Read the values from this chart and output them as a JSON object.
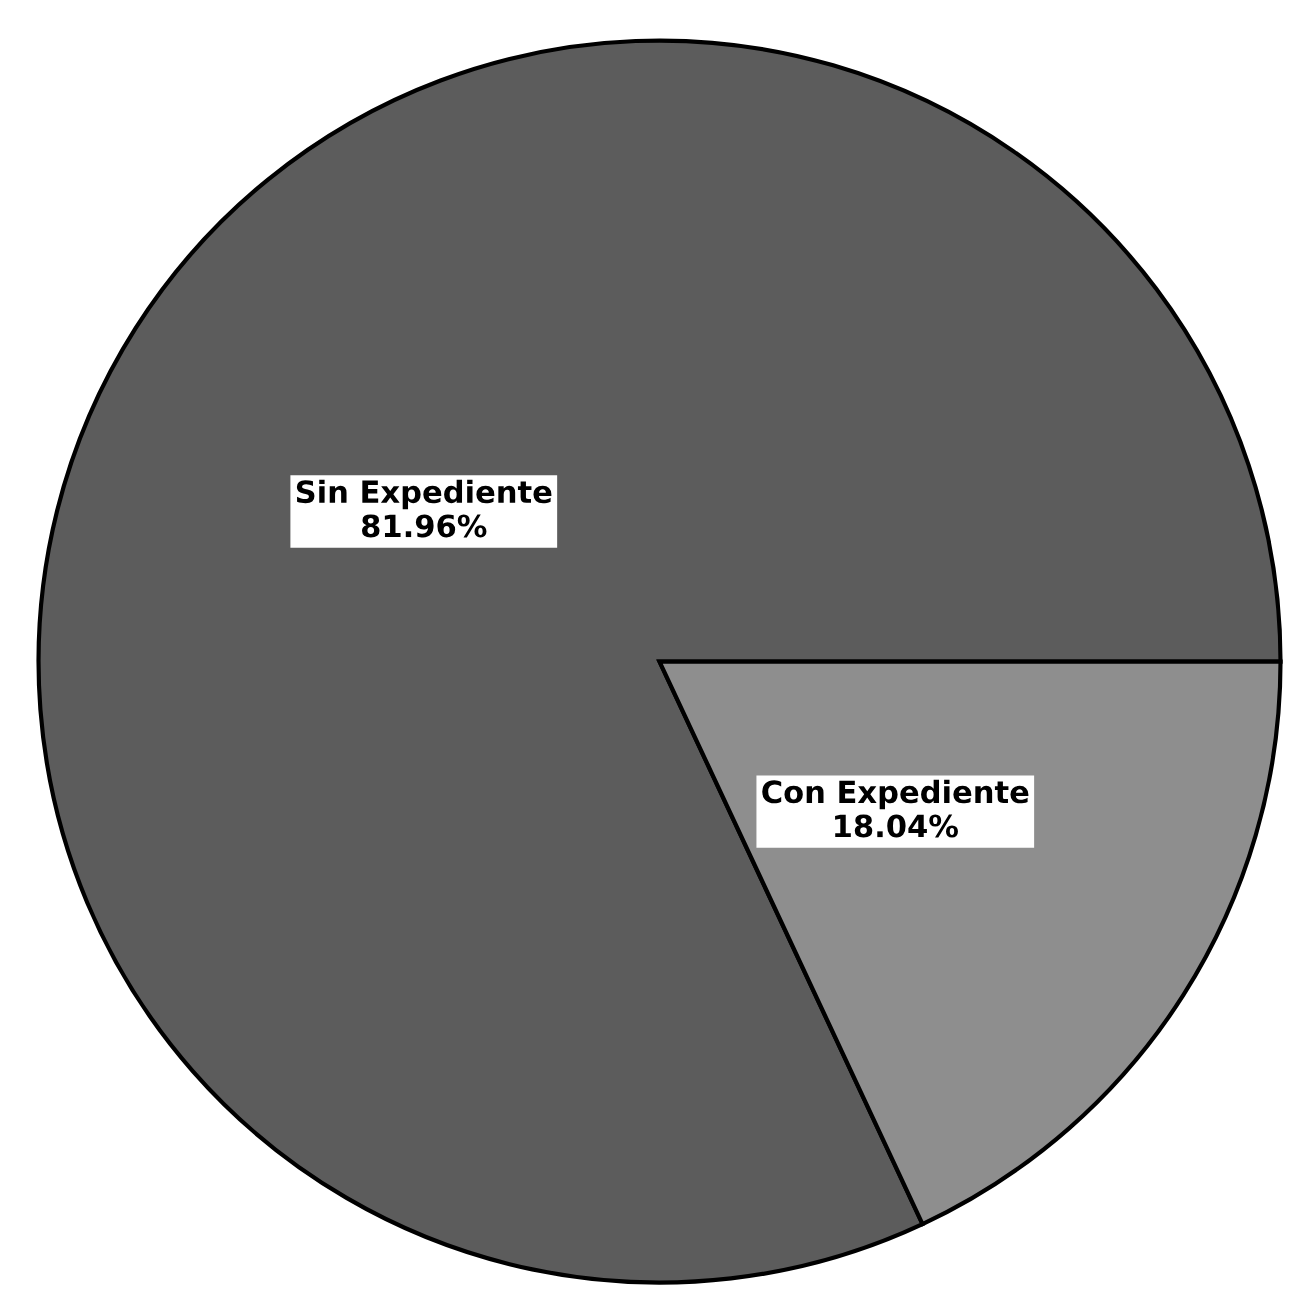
{
  "chart_data": {
    "type": "pie",
    "categories": [
      "Sin Expediente",
      "Con Expediente"
    ],
    "values": [
      81.96,
      18.04
    ],
    "colors": [
      "#5c5c5c",
      "#8e8e8e"
    ],
    "value_labels": [
      "81.96%",
      "18.04%"
    ]
  }
}
